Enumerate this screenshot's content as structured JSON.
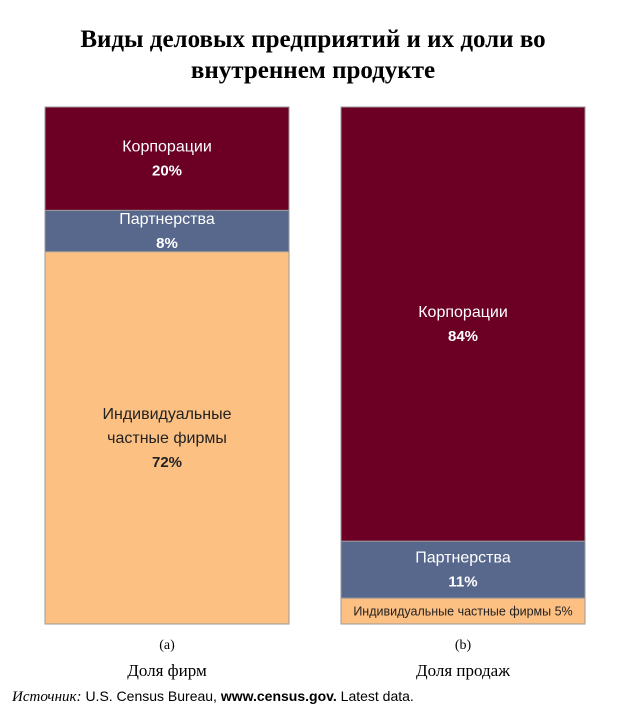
{
  "title_lines": [
    "Виды деловых предприятий и их доли во",
    "внутреннем продукте"
  ],
  "chart_data": [
    {
      "type": "bar",
      "stacked": true,
      "panel_letter": "(a)",
      "caption": "Доля фирм",
      "unit": "%",
      "segments": [
        {
          "name": "Корпорации",
          "label_lines": [
            "Корпорации"
          ],
          "value": 20,
          "value_text": "20%",
          "color": "#6b0024",
          "text_color": "#ffffff"
        },
        {
          "name": "Партнерства",
          "label_lines": [
            "Партнерства"
          ],
          "value": 8,
          "value_text": "8%",
          "color": "#58688d",
          "text_color": "#ffffff"
        },
        {
          "name": "Индивидуальные частные фирмы",
          "label_lines": [
            "Индивидуальные",
            "частные фирмы"
          ],
          "value": 72,
          "value_text": "72%",
          "color": "#fcc083",
          "text_color": "#222222"
        }
      ]
    },
    {
      "type": "bar",
      "stacked": true,
      "panel_letter": "(b)",
      "caption": "Доля продаж",
      "unit": "%",
      "segments": [
        {
          "name": "Корпорации",
          "label_lines": [
            "Корпорации"
          ],
          "value": 84,
          "value_text": "84%",
          "color": "#6b0024",
          "text_color": "#ffffff"
        },
        {
          "name": "Партнерства",
          "label_lines": [
            "Партнерства"
          ],
          "value": 11,
          "value_text": "11%",
          "color": "#58688d",
          "text_color": "#ffffff"
        },
        {
          "name": "Индивидуальные частные фирмы",
          "label_lines": [
            "Индивидуальные частные фирмы 5%"
          ],
          "value": 5,
          "value_text": "",
          "color": "#fcc083",
          "text_color": "#222222",
          "inline": true
        }
      ]
    }
  ],
  "source": {
    "label": "Источник:",
    "text_before": "U.S. Census Bureau,",
    "url": "www.census.gov.",
    "text_after": "Latest data."
  }
}
